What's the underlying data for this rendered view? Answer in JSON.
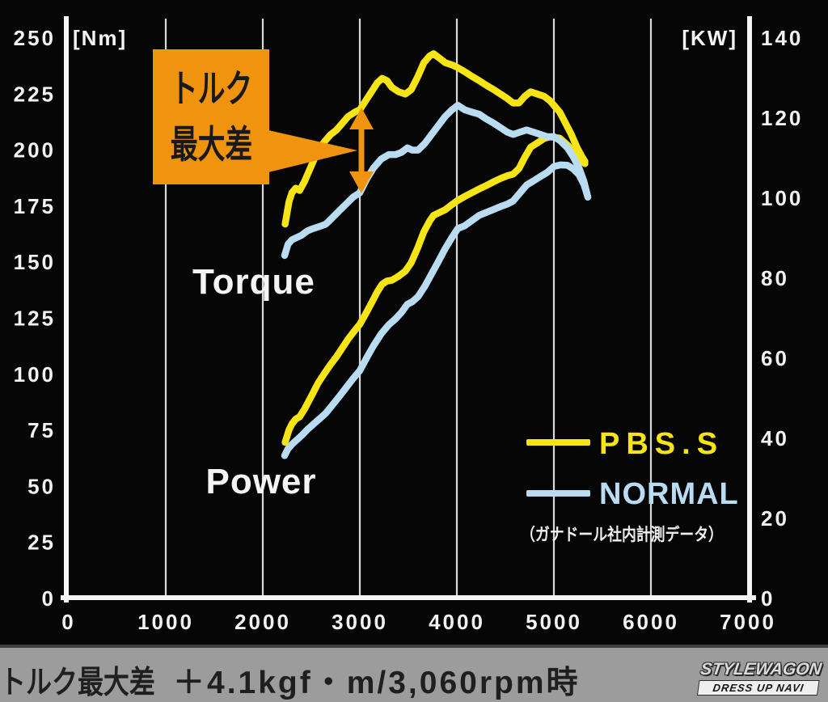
{
  "colors": {
    "pbss": "#f6e414",
    "normal": "#badcf2",
    "accent_orange": "#f0930f",
    "background": "#060606",
    "footer_bar": "#9c9c9c"
  },
  "chart_data": {
    "type": "line",
    "x_axis": {
      "range": [
        0,
        7000
      ],
      "ticks": [
        0,
        1000,
        2000,
        3000,
        4000,
        5000,
        6000,
        7000
      ]
    },
    "left_axis": {
      "unit": "[Nm]",
      "range": [
        0,
        250
      ],
      "ticks": [
        0,
        25,
        50,
        75,
        100,
        125,
        150,
        175,
        200,
        225,
        250
      ]
    },
    "right_axis": {
      "unit": "[KW]",
      "range": [
        0,
        140
      ],
      "ticks": [
        0,
        20,
        40,
        60,
        80,
        100,
        120,
        140
      ]
    },
    "grid": "vertical-only",
    "curve_labels": {
      "torque": "Torque",
      "power": "Power"
    },
    "legend": {
      "pbss": "PBS.S",
      "normal": "NORMAL",
      "note": "（ガナドール社内計測データ）"
    },
    "annotation": {
      "callout_line1": "トルク",
      "callout_line2": "最大差"
    },
    "series": [
      {
        "name": "normal-power",
        "legend": "NORMAL",
        "axis": "right",
        "color": "#badcf2",
        "x": [
          2225,
          2260,
          2300,
          2350,
          2400,
          2460,
          2520,
          2590,
          2650,
          2720,
          2790,
          2860,
          2930,
          3000,
          3070,
          3140,
          3220,
          3300,
          3370,
          3430,
          3490,
          3540,
          3600,
          3670,
          3740,
          3810,
          3880,
          3950,
          4010,
          4080,
          4150,
          4230,
          4300,
          4380,
          4450,
          4520,
          4580,
          4650,
          4720,
          4790,
          4860,
          4930,
          5000,
          5070,
          5140,
          5200,
          5260,
          5310,
          5350
        ],
        "y": [
          35.7,
          37.4,
          38.5,
          39.6,
          40.7,
          42.2,
          43.5,
          45,
          46.3,
          48.4,
          50.5,
          52.7,
          54.9,
          56.9,
          60.1,
          63.1,
          66.1,
          68.4,
          69.9,
          71.5,
          73.5,
          74.1,
          75.4,
          78,
          81.1,
          84.2,
          87.4,
          90.2,
          92.4,
          93.1,
          94.3,
          95.7,
          96.4,
          97.2,
          97.9,
          98.5,
          99.3,
          101.3,
          103.3,
          104.3,
          105.4,
          106.4,
          107.9,
          108.3,
          108.2,
          107.3,
          105.8,
          103.4,
          100.3
        ]
      },
      {
        "name": "pbss-power",
        "legend": "PBS.S",
        "axis": "right",
        "color": "#f6e414",
        "x": [
          2230,
          2270,
          2300,
          2340,
          2380,
          2430,
          2500,
          2570,
          2640,
          2700,
          2760,
          2820,
          2880,
          2950,
          3000,
          3060,
          3120,
          3180,
          3230,
          3280,
          3330,
          3400,
          3470,
          3530,
          3600,
          3660,
          3720,
          3760,
          3820,
          3880,
          3950,
          4000,
          4080,
          4150,
          4230,
          4300,
          4380,
          4450,
          4520,
          4580,
          4640,
          4700,
          4760,
          4830,
          4900,
          4960,
          5000,
          5060,
          5120,
          5180,
          5240,
          5290,
          5320
        ],
        "y": [
          39,
          42.1,
          43.6,
          44.8,
          45.4,
          47.3,
          50.5,
          53.8,
          56.4,
          58.5,
          60.4,
          62.6,
          64.8,
          67,
          68.5,
          71.1,
          73.8,
          76.6,
          78.5,
          79.3,
          79.5,
          80.5,
          81.8,
          83.9,
          87.8,
          91.6,
          94.3,
          95.7,
          96.4,
          97.1,
          98.4,
          99.3,
          100.4,
          101.3,
          102.3,
          103.1,
          104.1,
          104.9,
          105.6,
          106,
          107.4,
          110.2,
          112.7,
          113.8,
          114.9,
          115.3,
          115.2,
          115,
          113.7,
          112.3,
          110.3,
          109.1,
          108.6
        ]
      },
      {
        "name": "normal-torque",
        "legend": "NORMAL",
        "axis": "left",
        "color": "#badcf2",
        "x": [
          2225,
          2260,
          2300,
          2350,
          2400,
          2460,
          2520,
          2590,
          2650,
          2720,
          2790,
          2860,
          2930,
          3000,
          3070,
          3140,
          3220,
          3300,
          3370,
          3430,
          3490,
          3540,
          3600,
          3670,
          3740,
          3810,
          3880,
          3950,
          4010,
          4080,
          4150,
          4230,
          4300,
          4380,
          4450,
          4520,
          4580,
          4650,
          4720,
          4790,
          4860,
          4930,
          5000,
          5070,
          5140,
          5200,
          5260,
          5310,
          5350
        ],
        "y": [
          153,
          158,
          160,
          161,
          162,
          164,
          165,
          166,
          167,
          170,
          173,
          176,
          179,
          181,
          187,
          192,
          196,
          198,
          198,
          199,
          201,
          200,
          200,
          203,
          207,
          211,
          215,
          218,
          220,
          218,
          217,
          216,
          214,
          212,
          210,
          208,
          207,
          208,
          209,
          208,
          207,
          206,
          206,
          204,
          201,
          197,
          192,
          186,
          179
        ]
      },
      {
        "name": "pbss-torque",
        "legend": "PBS.S",
        "axis": "left",
        "color": "#f6e414",
        "x": [
          2230,
          2270,
          2300,
          2340,
          2380,
          2430,
          2500,
          2570,
          2640,
          2700,
          2760,
          2820,
          2880,
          2950,
          3000,
          3060,
          3120,
          3180,
          3230,
          3280,
          3330,
          3400,
          3470,
          3530,
          3600,
          3660,
          3720,
          3760,
          3820,
          3880,
          3950,
          4000,
          4080,
          4150,
          4230,
          4300,
          4380,
          4450,
          4520,
          4580,
          4640,
          4700,
          4760,
          4830,
          4900,
          4960,
          5000,
          5060,
          5120,
          5180,
          5240,
          5290,
          5320
        ],
        "y": [
          167,
          177,
          181,
          183,
          182,
          186,
          193,
          200,
          204,
          207,
          209,
          212,
          215,
          217,
          218,
          222,
          226,
          230,
          232,
          231,
          228,
          226,
          225,
          227,
          233,
          239,
          242,
          243,
          241,
          239,
          238,
          237,
          235,
          233,
          231,
          229,
          227,
          225,
          223,
          221,
          221,
          224,
          226,
          225,
          224,
          222,
          220,
          217,
          212,
          207,
          201,
          197,
          195
        ]
      }
    ]
  },
  "footer": {
    "label": "トルク最大差",
    "value": "＋4.1kgf・m/3,060rpm時",
    "logo_top": "STYLEWAGON",
    "logo_bottom": "DRESS UP NAVI"
  }
}
